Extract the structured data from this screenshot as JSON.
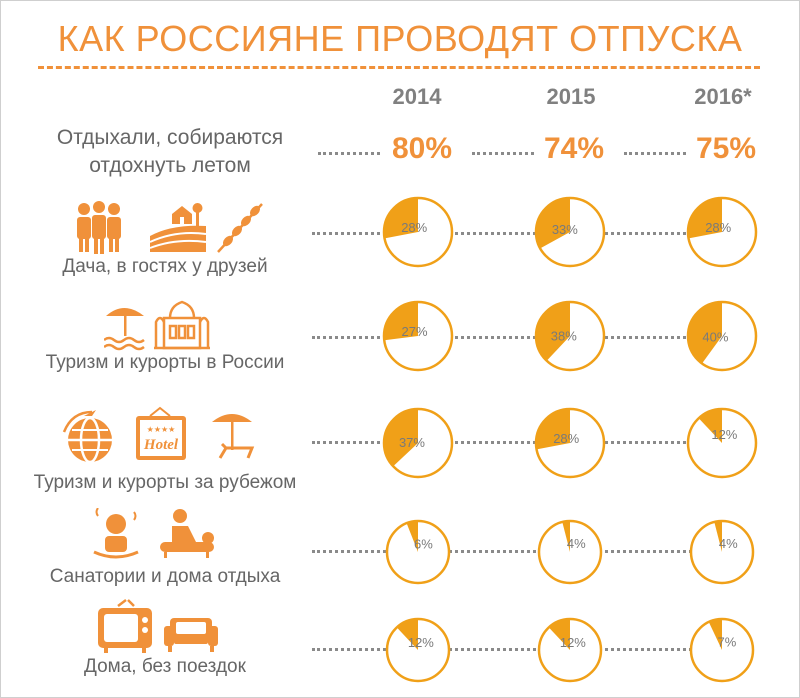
{
  "title": "КАК РОССИЯНЕ ПРОВОДЯТ ОТПУСКА",
  "colors": {
    "accent": "#f0913a",
    "text": "#666666",
    "pie_fill": "#f0a018"
  },
  "chart_data": {
    "type": "pie",
    "years": [
      "2014",
      "2015",
      "2016*"
    ],
    "headline": {
      "label": "Отдыхали, собираются отдохнуть летом",
      "values": [
        "80%",
        "74%",
        "75%"
      ]
    },
    "categories": [
      {
        "label": "Дача, в гостях у друзей",
        "icons": [
          "people-icon",
          "countryside-house-icon",
          "shashlik-skewers-icon"
        ],
        "values": [
          28,
          33,
          28
        ]
      },
      {
        "label": "Туризм и курорты в России",
        "icons": [
          "beach-umbrella-icon",
          "church-icon"
        ],
        "values": [
          27,
          38,
          40
        ]
      },
      {
        "label": "Туризм и курорты за рубежом",
        "icons": [
          "globe-airplane-icon",
          "hotel-sign-icon",
          "sunbed-icon"
        ],
        "values": [
          37,
          28,
          12
        ]
      },
      {
        "label": "Санатории и дома отдыха",
        "icons": [
          "spa-person-icon",
          "massage-icon"
        ],
        "values": [
          6,
          4,
          4
        ]
      },
      {
        "label": "Дома, без поездок",
        "icons": [
          "tv-icon",
          "armchair-icon"
        ],
        "values": [
          12,
          12,
          7
        ]
      }
    ]
  },
  "icon_text": {
    "hotel": "Hotel",
    "hotel_stars": "★★★★"
  }
}
